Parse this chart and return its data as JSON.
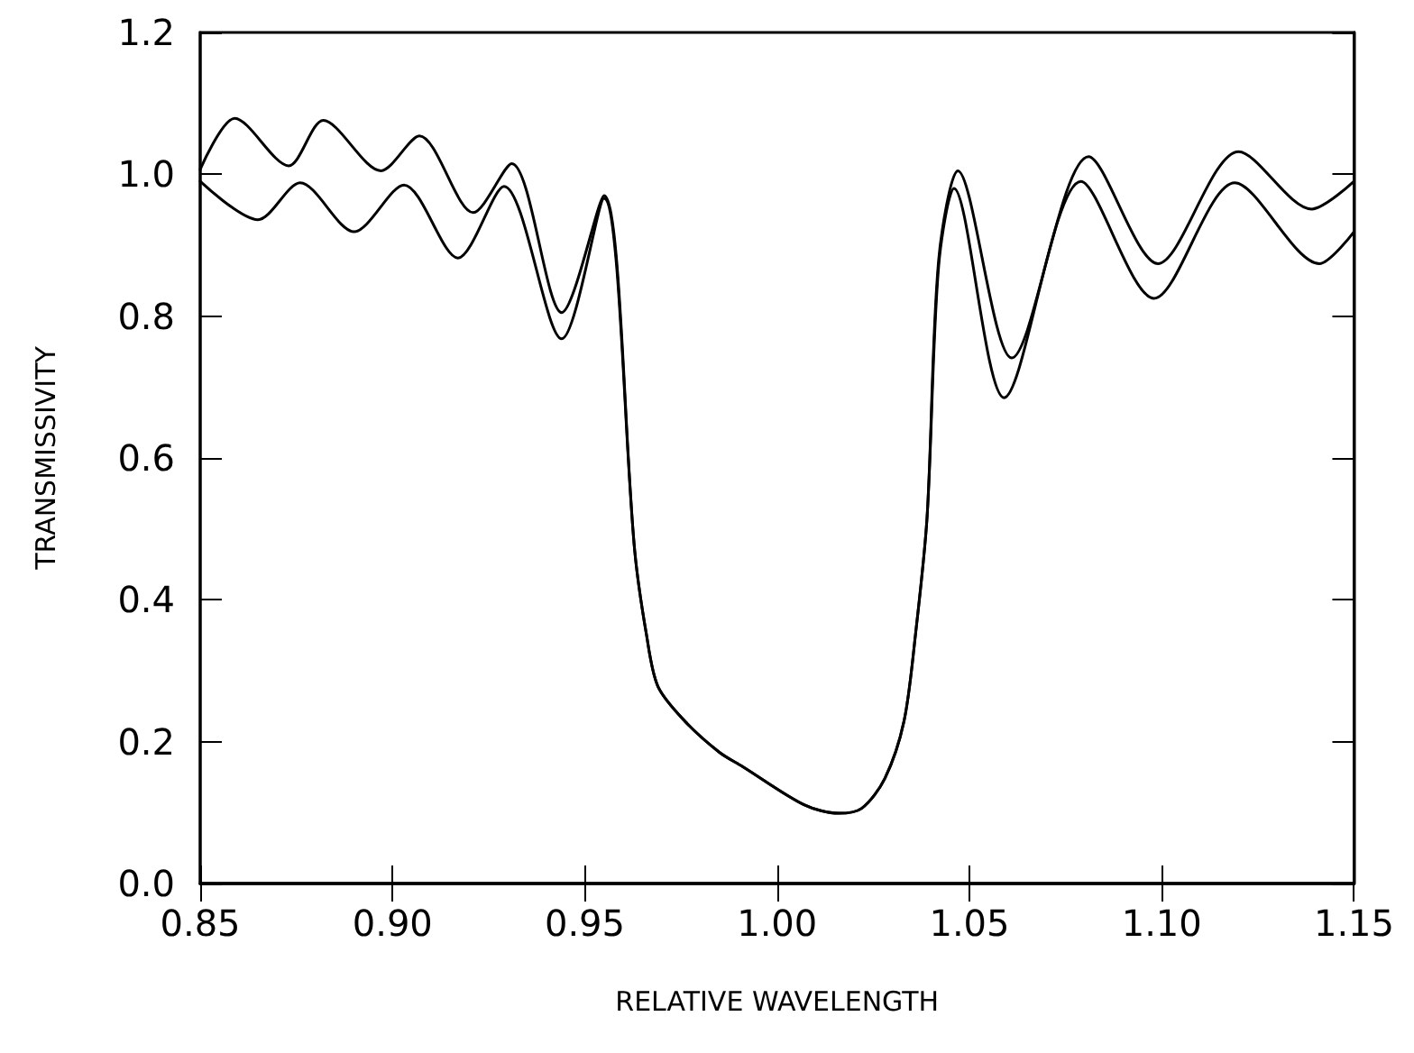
{
  "chart_data": {
    "type": "line",
    "xlabel": "RELATIVE WAVELENGTH",
    "ylabel": "TRANSMISSIVITY",
    "xlim": [
      0.85,
      1.15
    ],
    "xticks": [
      {
        "value": 0.85,
        "label": "0.85"
      },
      {
        "value": 0.9,
        "label": "0.90"
      },
      {
        "value": 0.95,
        "label": "0.95"
      },
      {
        "value": 1.0,
        "label": "1.00"
      },
      {
        "value": 1.05,
        "label": "1.05"
      },
      {
        "value": 1.1,
        "label": "1.10"
      },
      {
        "value": 1.15,
        "label": "1.15"
      }
    ],
    "ylim": [
      0,
      1.2
    ],
    "yticks": [
      {
        "value": 0,
        "label": "0.0"
      },
      {
        "value": 0.2,
        "label": "0.2"
      },
      {
        "value": 0.4,
        "label": "0.4"
      },
      {
        "value": 0.6,
        "label": "0.6"
      },
      {
        "value": 0.8,
        "label": "0.8"
      },
      {
        "value": 1.0,
        "label": "1.0"
      },
      {
        "value": 1.2,
        "label": "1.2"
      }
    ],
    "grid": false,
    "marker": "none",
    "line_style": "solid",
    "series": [
      {
        "color": "#000000",
        "x": [
          0.85,
          0.859,
          0.873,
          0.882,
          0.897,
          0.907,
          0.921,
          0.931,
          0.944,
          0.955,
          0.963,
          0.966,
          0.969,
          0.976,
          0.985,
          0.991,
          1.007,
          1.016,
          1.022,
          1.028,
          1.033,
          1.036,
          1.039,
          1.042,
          1.047,
          1.061,
          1.081,
          1.099,
          1.12,
          1.139,
          1.15
        ],
        "values": [
          1.007,
          1.079,
          1.012,
          1.076,
          1.005,
          1.054,
          0.946,
          1.015,
          0.805,
          0.97,
          0.468,
          0.352,
          0.278,
          0.229,
          0.185,
          0.165,
          0.111,
          0.099,
          0.106,
          0.148,
          0.229,
          0.352,
          0.517,
          0.879,
          1.005,
          0.741,
          1.025,
          0.874,
          1.032,
          0.951,
          0.99
        ]
      },
      {
        "color": "#000000",
        "x": [
          0.85,
          0.865,
          0.876,
          0.89,
          0.903,
          0.917,
          0.929,
          0.944,
          0.955,
          0.963,
          0.966,
          0.969,
          0.976,
          0.985,
          0.991,
          1.007,
          1.016,
          1.022,
          1.028,
          1.033,
          1.036,
          1.039,
          1.042,
          1.046,
          1.059,
          1.079,
          1.098,
          1.119,
          1.141,
          1.15
        ],
        "values": [
          0.99,
          0.936,
          0.988,
          0.919,
          0.985,
          0.882,
          0.983,
          0.768,
          0.966,
          0.468,
          0.352,
          0.278,
          0.229,
          0.185,
          0.165,
          0.111,
          0.099,
          0.106,
          0.148,
          0.229,
          0.352,
          0.517,
          0.87,
          0.98,
          0.685,
          0.99,
          0.825,
          0.988,
          0.874,
          0.919
        ]
      }
    ]
  }
}
